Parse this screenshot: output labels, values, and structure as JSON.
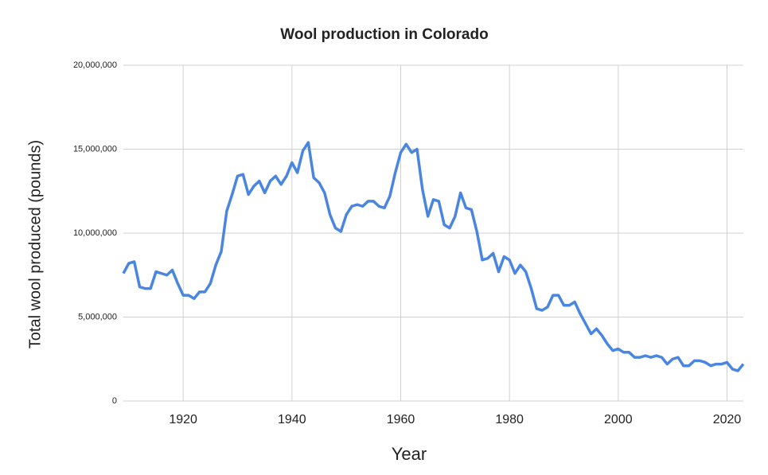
{
  "chart_data": {
    "type": "line",
    "title": "Wool production in Colorado",
    "x_label": "Year",
    "y_label": "Total wool produced (pounds)",
    "x": [
      1909,
      1910,
      1911,
      1912,
      1913,
      1914,
      1915,
      1916,
      1917,
      1918,
      1919,
      1920,
      1921,
      1922,
      1923,
      1924,
      1925,
      1926,
      1927,
      1928,
      1929,
      1930,
      1931,
      1932,
      1933,
      1934,
      1935,
      1936,
      1937,
      1938,
      1939,
      1940,
      1941,
      1942,
      1943,
      1944,
      1945,
      1946,
      1947,
      1948,
      1949,
      1950,
      1951,
      1952,
      1953,
      1954,
      1955,
      1956,
      1957,
      1958,
      1959,
      1960,
      1961,
      1962,
      1963,
      1964,
      1965,
      1966,
      1967,
      1968,
      1969,
      1970,
      1971,
      1972,
      1973,
      1974,
      1975,
      1976,
      1977,
      1978,
      1979,
      1980,
      1981,
      1982,
      1983,
      1984,
      1985,
      1986,
      1987,
      1988,
      1989,
      1990,
      1991,
      1992,
      1993,
      1994,
      1995,
      1996,
      1997,
      1998,
      1999,
      2000,
      2001,
      2002,
      2003,
      2004,
      2005,
      2006,
      2007,
      2008,
      2009,
      2010,
      2011,
      2012,
      2013,
      2014,
      2015,
      2016,
      2017,
      2018,
      2019,
      2020,
      2021,
      2022,
      2023
    ],
    "series": [
      {
        "name": "Total wool produced (pounds)",
        "color": "#4a86e0",
        "values": [
          7600000,
          8200000,
          8300000,
          6800000,
          6700000,
          6700000,
          7700000,
          7600000,
          7500000,
          7800000,
          7000000,
          6300000,
          6300000,
          6100000,
          6500000,
          6500000,
          7000000,
          8100000,
          8900000,
          11300000,
          12300000,
          13400000,
          13500000,
          12300000,
          12800000,
          13100000,
          12400000,
          13100000,
          13400000,
          12900000,
          13400000,
          14200000,
          13600000,
          14900000,
          15400000,
          13300000,
          13000000,
          12400000,
          11100000,
          10300000,
          10100000,
          11100000,
          11600000,
          11700000,
          11600000,
          11900000,
          11900000,
          11600000,
          11500000,
          12200000,
          13600000,
          14800000,
          15300000,
          14800000,
          15000000,
          12600000,
          11000000,
          12000000,
          11900000,
          10500000,
          10300000,
          11000000,
          12400000,
          11500000,
          11400000,
          10100000,
          8400000,
          8500000,
          8800000,
          7700000,
          8600000,
          8400000,
          7600000,
          8100000,
          7700000,
          6700000,
          5500000,
          5400000,
          5600000,
          6300000,
          6300000,
          5700000,
          5700000,
          5900000,
          5200000,
          4600000,
          4000000,
          4300000,
          3900000,
          3400000,
          3000000,
          3100000,
          2900000,
          2900000,
          2600000,
          2600000,
          2700000,
          2600000,
          2700000,
          2600000,
          2200000,
          2500000,
          2600000,
          2100000,
          2100000,
          2400000,
          2400000,
          2300000,
          2100000,
          2200000,
          2200000,
          2300000,
          1900000,
          1800000,
          2200000
        ]
      }
    ],
    "xlim": [
      1909,
      2023
    ],
    "xticks": [
      1920,
      1940,
      1960,
      1980,
      2000,
      2020
    ],
    "ylim": [
      0,
      20000000
    ],
    "yticks": [
      0,
      {
        "value": 5000000,
        "label": "5,000,000"
      },
      {
        "value": 10000000,
        "label": "10,000,000"
      },
      {
        "value": 15000000,
        "label": "15,000,000"
      },
      {
        "value": 20000000,
        "label": "20,000,000"
      }
    ],
    "grid": true
  }
}
